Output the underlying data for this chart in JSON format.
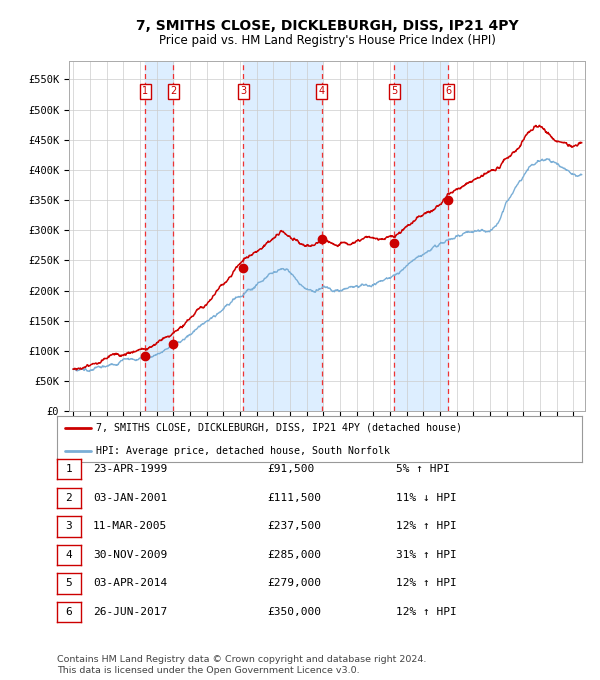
{
  "title": "7, SMITHS CLOSE, DICKLEBURGH, DISS, IP21 4PY",
  "subtitle": "Price paid vs. HM Land Registry's House Price Index (HPI)",
  "title_fontsize": 10,
  "subtitle_fontsize": 8.5,
  "ylabel_ticks": [
    "£0",
    "£50K",
    "£100K",
    "£150K",
    "£200K",
    "£250K",
    "£300K",
    "£350K",
    "£400K",
    "£450K",
    "£500K",
    "£550K"
  ],
  "ytick_vals": [
    0,
    50000,
    100000,
    150000,
    200000,
    250000,
    300000,
    350000,
    400000,
    450000,
    500000,
    550000
  ],
  "ylim": [
    0,
    580000
  ],
  "sales": [
    {
      "num": 1,
      "date_str": "23-APR-1999",
      "year": 1999.31,
      "price": 91500,
      "pct": "5%",
      "dir": "↑"
    },
    {
      "num": 2,
      "date_str": "03-JAN-2001",
      "year": 2001.01,
      "price": 111500,
      "pct": "11%",
      "dir": "↓"
    },
    {
      "num": 3,
      "date_str": "11-MAR-2005",
      "year": 2005.19,
      "price": 237500,
      "pct": "12%",
      "dir": "↑"
    },
    {
      "num": 4,
      "date_str": "30-NOV-2009",
      "year": 2009.92,
      "price": 285000,
      "pct": "31%",
      "dir": "↑"
    },
    {
      "num": 5,
      "date_str": "03-APR-2014",
      "year": 2014.25,
      "price": 279000,
      "pct": "12%",
      "dir": "↑"
    },
    {
      "num": 6,
      "date_str": "26-JUN-2017",
      "year": 2017.49,
      "price": 350000,
      "pct": "12%",
      "dir": "↑"
    }
  ],
  "hpi_line_color": "#7aaed6",
  "price_line_color": "#cc0000",
  "sale_dot_color": "#cc0000",
  "sale_box_color": "#cc0000",
  "vline_color": "#ee3333",
  "shade_color": "#ddeeff",
  "grid_color": "#cccccc",
  "bg_color": "#ffffff",
  "legend_line1": "7, SMITHS CLOSE, DICKLEBURGH, DISS, IP21 4PY (detached house)",
  "legend_line2": "HPI: Average price, detached house, South Norfolk",
  "footer1": "Contains HM Land Registry data © Crown copyright and database right 2024.",
  "footer2": "This data is licensed under the Open Government Licence v3.0.",
  "table_rows": [
    [
      "1",
      "23-APR-1999",
      "£91,500",
      "5% ↑ HPI"
    ],
    [
      "2",
      "03-JAN-2001",
      "£111,500",
      "11% ↓ HPI"
    ],
    [
      "3",
      "11-MAR-2005",
      "£237,500",
      "12% ↑ HPI"
    ],
    [
      "4",
      "30-NOV-2009",
      "£285,000",
      "31% ↑ HPI"
    ],
    [
      "5",
      "03-APR-2014",
      "£279,000",
      "12% ↑ HPI"
    ],
    [
      "6",
      "26-JUN-2017",
      "£350,000",
      "12% ↑ HPI"
    ]
  ]
}
